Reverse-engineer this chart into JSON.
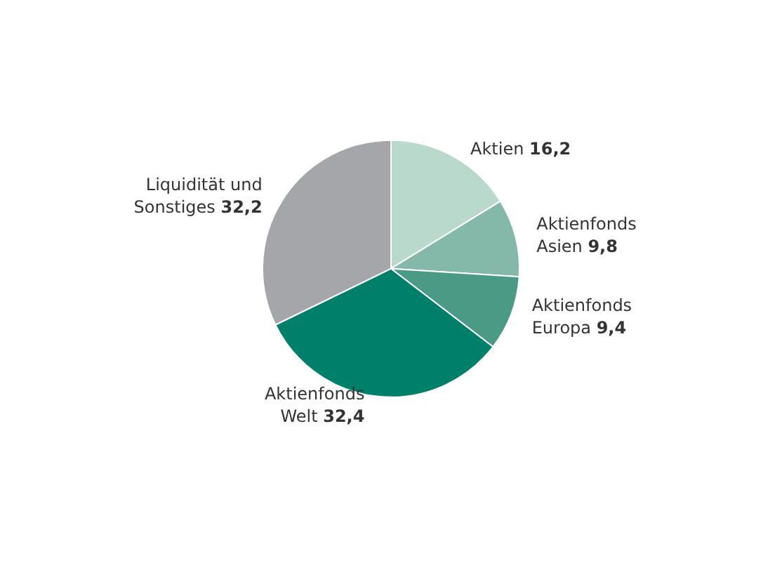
{
  "chart_data": {
    "type": "pie",
    "categories": [
      "Aktien",
      "Aktienfonds\nAsien",
      "Aktienfonds\nEuropa",
      "Aktienfonds\nWelt",
      "Liquidität und\nSonstiges"
    ],
    "values": [
      16.2,
      9.8,
      9.4,
      32.4,
      32.2
    ],
    "value_labels": [
      "16,2",
      "9,8",
      "9,4",
      "32,4",
      "32,2"
    ],
    "colors": [
      "#b9d9cc",
      "#84b9a9",
      "#4a9a85",
      "#00806a",
      "#a5a6a9"
    ],
    "legend": false
  }
}
